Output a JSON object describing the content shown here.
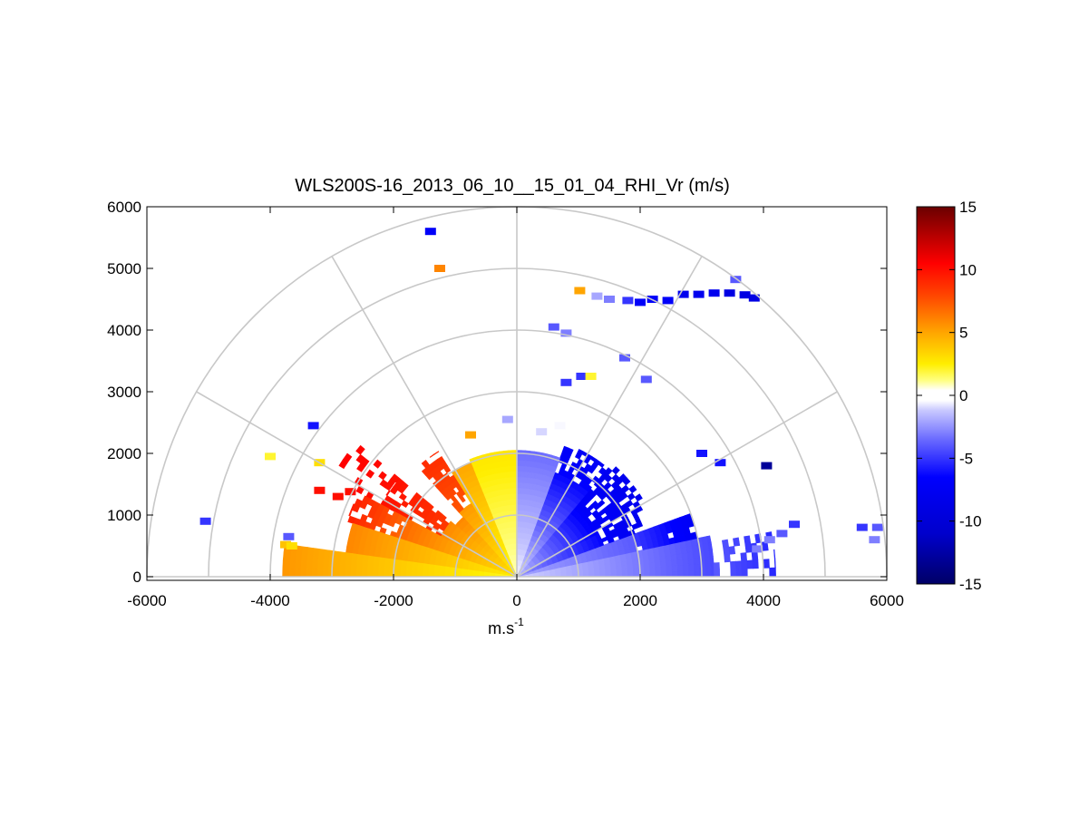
{
  "chart_data": {
    "type": "heatmap",
    "projection": "polar-rhi",
    "title": "WLS200S-16_2013_06_10__15_01_04_RHI_Vr (m/s)",
    "xlabel": "m.s",
    "xlabel_superscript": "-1",
    "ylabel": "",
    "xlim": [
      -6000,
      6000
    ],
    "ylim": [
      0,
      6000
    ],
    "x_ticks": [
      -6000,
      -4000,
      -2000,
      0,
      2000,
      4000,
      6000
    ],
    "y_ticks": [
      0,
      1000,
      2000,
      3000,
      4000,
      5000,
      6000
    ],
    "polar_grid": {
      "range_rings": [
        1000,
        2000,
        3000,
        4000,
        5000,
        6000
      ],
      "spoke_angles_deg": [
        0,
        30,
        60,
        90,
        120,
        150,
        180
      ]
    },
    "grid": true,
    "colorbar": {
      "min": -15,
      "max": 15,
      "ticks": [
        15,
        10,
        5,
        0,
        -5,
        -10,
        -15
      ],
      "placement": "right",
      "colormap": [
        {
          "value": -15,
          "color": "#000066"
        },
        {
          "value": -11,
          "color": "#0000cc"
        },
        {
          "value": -6.5,
          "color": "#0000ff"
        },
        {
          "value": -3.5,
          "color": "#6a6aff"
        },
        {
          "value": -1.2,
          "color": "#c8c8ff"
        },
        {
          "value": -0.4,
          "color": "#ffffff"
        },
        {
          "value": 0.4,
          "color": "#ffffff"
        },
        {
          "value": 1.2,
          "color": "#ffff80"
        },
        {
          "value": 2.5,
          "color": "#ffee00"
        },
        {
          "value": 5,
          "color": "#ffa500"
        },
        {
          "value": 8,
          "color": "#ff4400"
        },
        {
          "value": 10.5,
          "color": "#ff0000"
        },
        {
          "value": 15,
          "color": "#6a0000"
        }
      ]
    },
    "colors": {
      "grid": "#c8c8c8",
      "axes": "#000000",
      "background": "#ffffff"
    },
    "velocity_sectors": [
      {
        "angle_from_deg": 0,
        "angle_to_deg": 12,
        "range_from": 0,
        "range_to": 3200,
        "vr_start": -1.0,
        "vr_end": -4.5,
        "fill": 1.0
      },
      {
        "angle_from_deg": 0,
        "angle_to_deg": 10,
        "range_from": 3200,
        "range_to": 4200,
        "vr_start": -4.0,
        "vr_end": -5.5,
        "fill": 0.45
      },
      {
        "angle_from_deg": 12,
        "angle_to_deg": 20,
        "range_from": 0,
        "range_to": 2000,
        "vr_start": -2.0,
        "vr_end": -4.0,
        "fill": 1.0
      },
      {
        "angle_from_deg": 12,
        "angle_to_deg": 20,
        "range_from": 2000,
        "range_to": 3000,
        "vr_start": -5.0,
        "vr_end": -7.5,
        "fill": 0.85
      },
      {
        "angle_from_deg": 20,
        "angle_to_deg": 28,
        "range_from": 0,
        "range_to": 1500,
        "vr_start": -2.5,
        "vr_end": -6.5,
        "fill": 1.0
      },
      {
        "angle_from_deg": 20,
        "angle_to_deg": 28,
        "range_from": 1500,
        "range_to": 2200,
        "vr_start": -7.0,
        "vr_end": -8.0,
        "fill": 0.75
      },
      {
        "angle_from_deg": 28,
        "angle_to_deg": 50,
        "range_from": 0,
        "range_to": 1500,
        "vr_start": -1.5,
        "vr_end": -7.0,
        "fill": 1.0
      },
      {
        "angle_from_deg": 28,
        "angle_to_deg": 50,
        "range_from": 1500,
        "range_to": 2400,
        "vr_start": -7.0,
        "vr_end": -8.0,
        "fill": 0.7
      },
      {
        "angle_from_deg": 50,
        "angle_to_deg": 70,
        "range_from": 0,
        "range_to": 1800,
        "vr_start": -1.0,
        "vr_end": -6.5,
        "fill": 1.0
      },
      {
        "angle_from_deg": 50,
        "angle_to_deg": 70,
        "range_from": 1800,
        "range_to": 2300,
        "vr_start": -6.5,
        "vr_end": -7.5,
        "fill": 0.55
      },
      {
        "angle_from_deg": 70,
        "angle_to_deg": 90,
        "range_from": 0,
        "range_to": 2050,
        "vr_start": -0.6,
        "vr_end": -3.5,
        "fill": 1.0
      },
      {
        "angle_from_deg": 90,
        "angle_to_deg": 112,
        "range_from": 0,
        "range_to": 2050,
        "vr_start": 0.8,
        "vr_end": 2.8,
        "fill": 1.0
      },
      {
        "angle_from_deg": 112,
        "angle_to_deg": 122,
        "range_from": 0,
        "range_to": 2000,
        "vr_start": 2.0,
        "vr_end": 5.0,
        "fill": 1.0
      },
      {
        "angle_from_deg": 122,
        "angle_to_deg": 132,
        "range_from": 0,
        "range_to": 1400,
        "vr_start": 2.5,
        "vr_end": 5.5,
        "fill": 1.0
      },
      {
        "angle_from_deg": 122,
        "angle_to_deg": 132,
        "range_from": 1400,
        "range_to": 2400,
        "vr_start": 7.5,
        "vr_end": 9.0,
        "fill": 0.75
      },
      {
        "angle_from_deg": 132,
        "angle_to_deg": 140,
        "range_from": 0,
        "range_to": 1300,
        "vr_start": 3.0,
        "vr_end": 6.0,
        "fill": 1.0
      },
      {
        "angle_from_deg": 140,
        "angle_to_deg": 152,
        "range_from": 0,
        "range_to": 1400,
        "vr_start": 3.0,
        "vr_end": 6.0,
        "fill": 1.0
      },
      {
        "angle_from_deg": 140,
        "angle_to_deg": 152,
        "range_from": 1400,
        "range_to": 2500,
        "vr_start": 8.5,
        "vr_end": 10.0,
        "fill": 0.6
      },
      {
        "angle_from_deg": 140,
        "angle_to_deg": 152,
        "range_from": 2500,
        "range_to": 3400,
        "vr_start": 10.0,
        "vr_end": 10.5,
        "fill": 0.18
      },
      {
        "angle_from_deg": 152,
        "angle_to_deg": 162,
        "range_from": 0,
        "range_to": 1800,
        "vr_start": 3.0,
        "vr_end": 6.5,
        "fill": 1.0
      },
      {
        "angle_from_deg": 152,
        "angle_to_deg": 162,
        "range_from": 1800,
        "range_to": 2900,
        "vr_start": 6.5,
        "vr_end": 9.5,
        "fill": 0.8
      },
      {
        "angle_from_deg": 162,
        "angle_to_deg": 172,
        "range_from": 0,
        "range_to": 2800,
        "vr_start": 2.5,
        "vr_end": 6.0,
        "fill": 1.0
      },
      {
        "angle_from_deg": 172,
        "angle_to_deg": 180,
        "range_from": 0,
        "range_to": 3800,
        "vr_start": 2.0,
        "vr_end": 5.5,
        "fill": 1.0
      }
    ],
    "velocity_points": [
      {
        "x": 1300,
        "y": 4550,
        "vr": -2
      },
      {
        "x": 1500,
        "y": 4500,
        "vr": -3
      },
      {
        "x": 1800,
        "y": 4480,
        "vr": -5
      },
      {
        "x": 2000,
        "y": 4450,
        "vr": -7
      },
      {
        "x": 2200,
        "y": 4500,
        "vr": -7
      },
      {
        "x": 2450,
        "y": 4480,
        "vr": -7
      },
      {
        "x": 2700,
        "y": 4580,
        "vr": -8
      },
      {
        "x": 2950,
        "y": 4580,
        "vr": -8
      },
      {
        "x": 3200,
        "y": 4600,
        "vr": -8
      },
      {
        "x": 3450,
        "y": 4600,
        "vr": -9
      },
      {
        "x": 3700,
        "y": 4570,
        "vr": -9
      },
      {
        "x": 3850,
        "y": 4520,
        "vr": -9
      },
      {
        "x": 3550,
        "y": 4820,
        "vr": -4
      },
      {
        "x": 1020,
        "y": 4640,
        "vr": 5
      },
      {
        "x": 600,
        "y": 4050,
        "vr": -4
      },
      {
        "x": 800,
        "y": 3950,
        "vr": -3
      },
      {
        "x": 1050,
        "y": 3250,
        "vr": -5
      },
      {
        "x": 1200,
        "y": 3250,
        "vr": 2
      },
      {
        "x": 800,
        "y": 3150,
        "vr": -5
      },
      {
        "x": 1750,
        "y": 3550,
        "vr": -4
      },
      {
        "x": 2100,
        "y": 3200,
        "vr": -4
      },
      {
        "x": 3000,
        "y": 2000,
        "vr": -6
      },
      {
        "x": 3300,
        "y": 1850,
        "vr": -6
      },
      {
        "x": 4050,
        "y": 1800,
        "vr": -13
      },
      {
        "x": 4500,
        "y": 850,
        "vr": -5
      },
      {
        "x": 4300,
        "y": 700,
        "vr": -4
      },
      {
        "x": 4100,
        "y": 600,
        "vr": -3
      },
      {
        "x": 3900,
        "y": 450,
        "vr": -3
      },
      {
        "x": 5600,
        "y": 800,
        "vr": -5
      },
      {
        "x": 5850,
        "y": 800,
        "vr": -4
      },
      {
        "x": 5800,
        "y": 600,
        "vr": -3
      },
      {
        "x": 400,
        "y": 2350,
        "vr": -1
      },
      {
        "x": 700,
        "y": 2450,
        "vr": -0.5
      },
      {
        "x": -1400,
        "y": 5600,
        "vr": -7
      },
      {
        "x": -1250,
        "y": 5000,
        "vr": 6
      },
      {
        "x": -3300,
        "y": 2450,
        "vr": -6
      },
      {
        "x": -4000,
        "y": 1950,
        "vr": 2
      },
      {
        "x": -3200,
        "y": 1850,
        "vr": 3
      },
      {
        "x": -3200,
        "y": 1400,
        "vr": 10
      },
      {
        "x": -2900,
        "y": 1300,
        "vr": 10
      },
      {
        "x": -2700,
        "y": 1380,
        "vr": 10
      },
      {
        "x": -5050,
        "y": 900,
        "vr": -5
      },
      {
        "x": -3700,
        "y": 650,
        "vr": -4
      },
      {
        "x": -3750,
        "y": 520,
        "vr": 4
      },
      {
        "x": -3650,
        "y": 500,
        "vr": 3
      },
      {
        "x": -750,
        "y": 2300,
        "vr": 5
      },
      {
        "x": -150,
        "y": 2550,
        "vr": -2
      }
    ]
  }
}
